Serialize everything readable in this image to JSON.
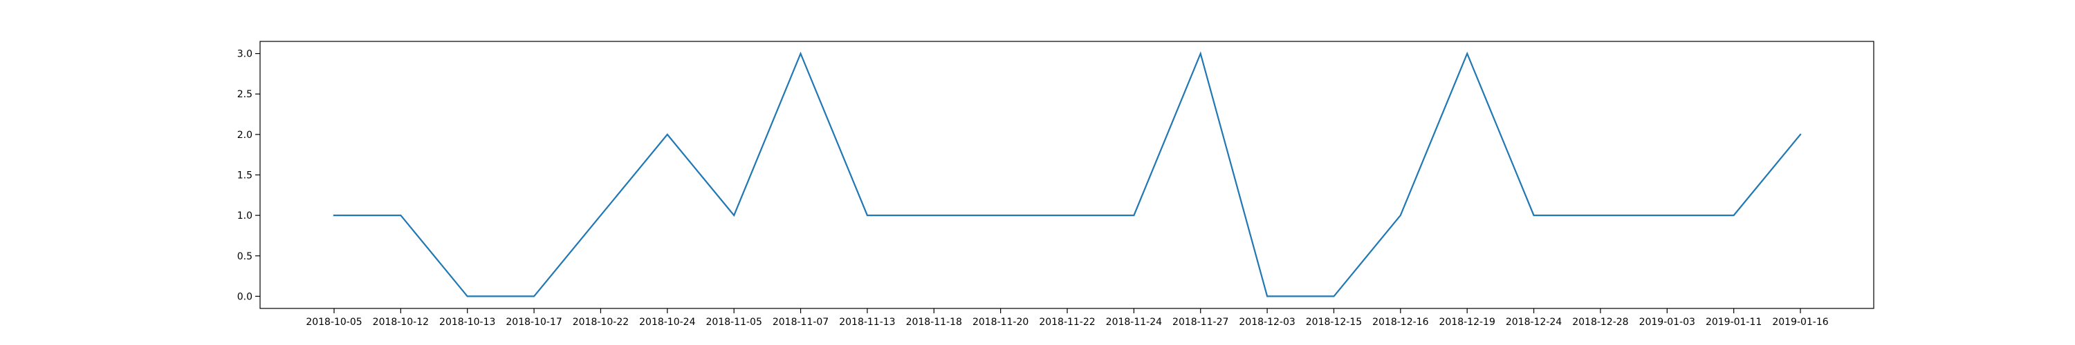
{
  "chart_data": {
    "type": "line",
    "title": "",
    "xlabel": "",
    "ylabel": "",
    "x": [
      "2018-10-05",
      "2018-10-12",
      "2018-10-13",
      "2018-10-17",
      "2018-10-22",
      "2018-10-24",
      "2018-11-05",
      "2018-11-07",
      "2018-11-13",
      "2018-11-18",
      "2018-11-20",
      "2018-11-22",
      "2018-11-24",
      "2018-11-27",
      "2018-12-03",
      "2018-12-15",
      "2018-12-16",
      "2018-12-19",
      "2018-12-24",
      "2018-12-28",
      "2019-01-03",
      "2019-01-11",
      "2019-01-16"
    ],
    "series": [
      {
        "values": [
          1,
          1,
          0,
          0,
          1,
          2,
          1,
          3,
          1,
          1,
          1,
          1,
          1,
          3,
          0,
          0,
          1,
          3,
          1,
          1,
          1,
          1,
          2
        ]
      }
    ],
    "ylim": [
      -0.15,
      3.15
    ],
    "yticks": [
      0.0,
      0.5,
      1.0,
      1.5,
      2.0,
      2.5,
      3.0
    ],
    "ytick_labels": [
      "0.0",
      "0.5",
      "1.0",
      "1.5",
      "2.0",
      "2.5",
      "3.0"
    ],
    "grid": false,
    "legend": "none",
    "line_color": "#1f77b4"
  }
}
